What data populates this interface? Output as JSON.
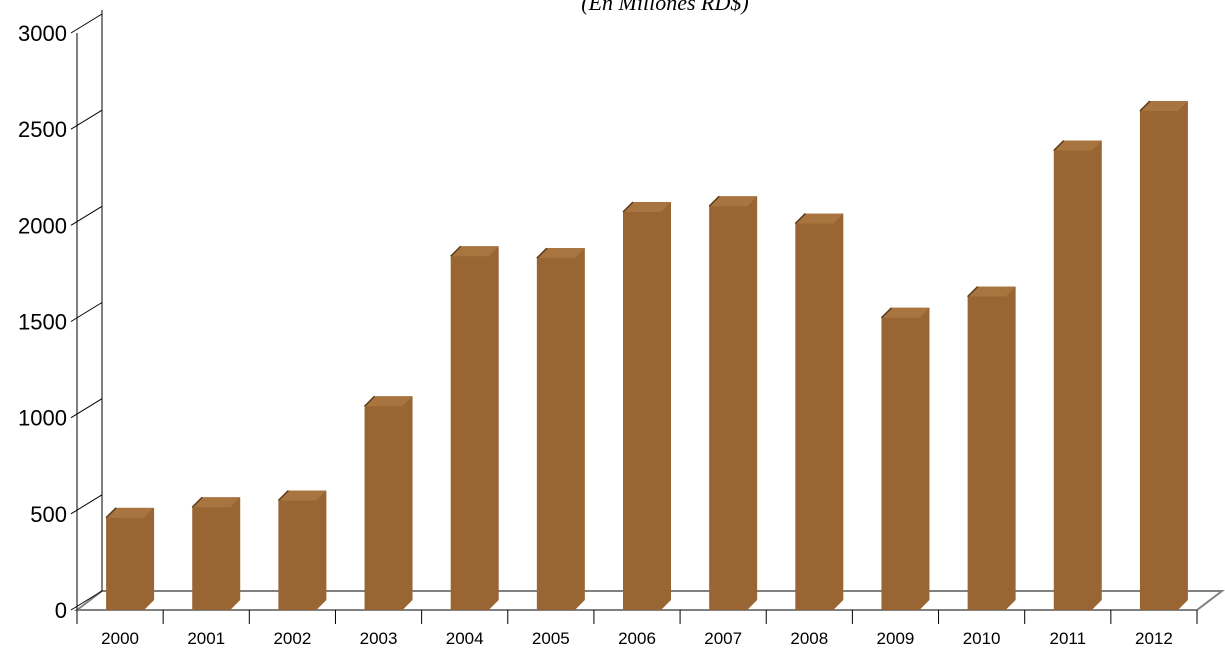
{
  "chart_data": {
    "type": "bar",
    "subtitle": "(En Millones RD$)",
    "categories": [
      "2000",
      "2001",
      "2002",
      "2003",
      "2004",
      "2005",
      "2006",
      "2007",
      "2008",
      "2009",
      "2010",
      "2011",
      "2012"
    ],
    "values": [
      500,
      555,
      590,
      1080,
      1860,
      1850,
      2090,
      2120,
      2030,
      1540,
      1650,
      2410,
      2615
    ],
    "ylim": [
      0,
      3000
    ],
    "yticks": [
      "0",
      "500",
      "1000",
      "1500",
      "2000",
      "2500",
      "3000"
    ],
    "grid": false,
    "legend": "none",
    "bar_color": "#996633",
    "axis_color": "#808080"
  }
}
